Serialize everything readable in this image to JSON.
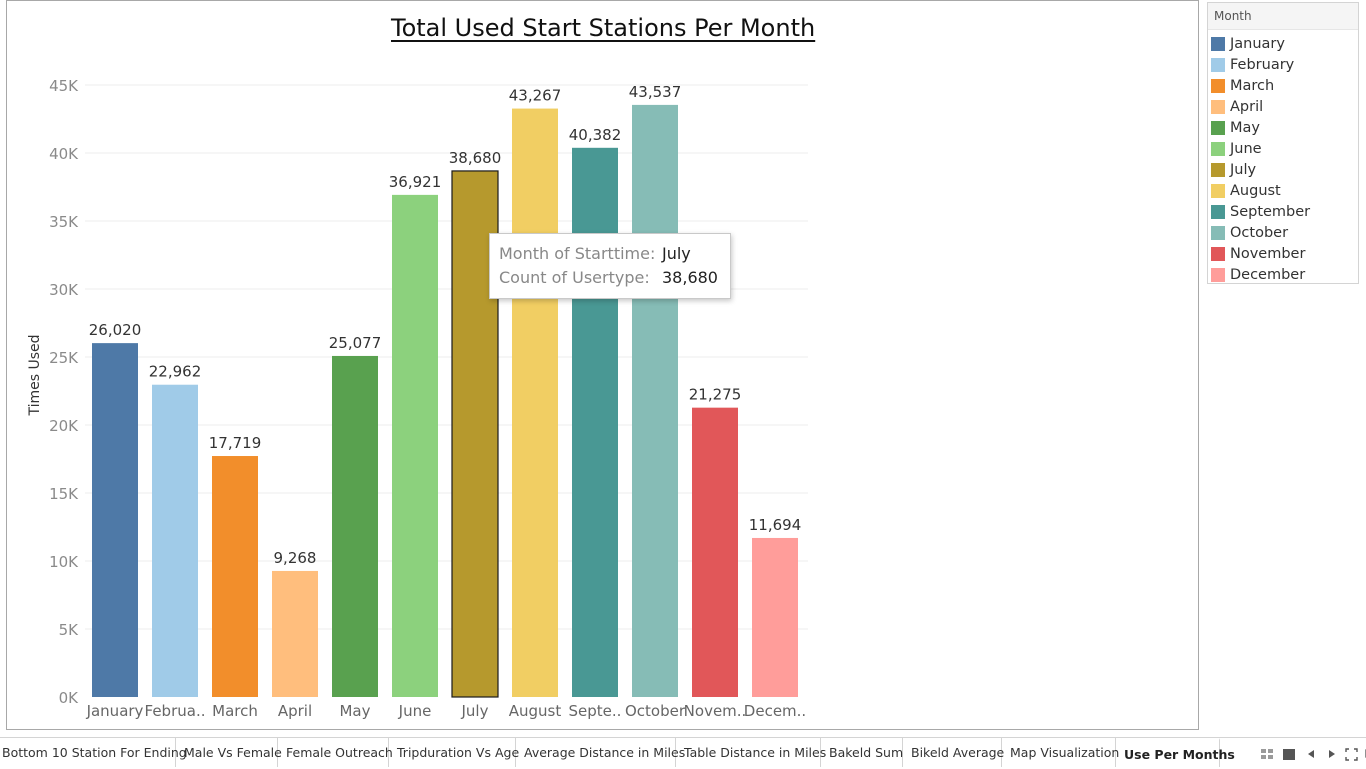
{
  "chart_data": {
    "type": "bar",
    "title": "Total Used Start Stations Per Month",
    "ylabel": "Times Used",
    "xlabel": "",
    "ylim": [
      0,
      46000
    ],
    "yticks": [
      0,
      5000,
      10000,
      15000,
      20000,
      25000,
      30000,
      35000,
      40000,
      45000
    ],
    "ytick_labels": [
      "0K",
      "5K",
      "10K",
      "15K",
      "20K",
      "25K",
      "30K",
      "35K",
      "40K",
      "45K"
    ],
    "grid": "horizontal",
    "categories": [
      "January",
      "February",
      "March",
      "April",
      "May",
      "June",
      "July",
      "August",
      "September",
      "October",
      "November",
      "December"
    ],
    "category_labels": [
      "January",
      "Februa..",
      "March",
      "April",
      "May",
      "June",
      "July",
      "August",
      "Septe..",
      "October",
      "Novem..",
      "Decem.."
    ],
    "values": [
      26020,
      22962,
      17719,
      9268,
      25077,
      36921,
      38680,
      43267,
      40382,
      43537,
      21275,
      11694
    ],
    "value_labels": [
      "26,020",
      "22,962",
      "17,719",
      "9,268",
      "25,077",
      "36,921",
      "38,680",
      "43,267",
      "40,382",
      "43,537",
      "21,275",
      "11,694"
    ],
    "colors": [
      "#4e79a7",
      "#a0cbe8",
      "#f28e2b",
      "#ffbe7d",
      "#59a14f",
      "#8cd17d",
      "#b6992d",
      "#f1ce63",
      "#499894",
      "#86bcb6",
      "#e15759",
      "#ff9d9a"
    ],
    "highlighted": "July",
    "legend_position": "right"
  },
  "legend": {
    "title": "Month",
    "items": [
      "January",
      "February",
      "March",
      "April",
      "May",
      "June",
      "July",
      "August",
      "September",
      "October",
      "November",
      "December"
    ]
  },
  "tooltip": {
    "label1": "Month of Starttime:",
    "value1": "July",
    "label2": "Count of Usertype:",
    "value2": "38,680"
  },
  "tabs": [
    "Bottom 10 Station For Ending",
    "Male Vs Female",
    "Female Outreach",
    "Tripduration Vs Age",
    "Average Distance in Miles",
    "Table Distance in Miles",
    "Bakeld Sum",
    "Bikeld Average",
    "Map Visualization",
    "Use Per Months"
  ],
  "active_tab": "Use Per Months",
  "nav_icons": [
    "grid-view-icon",
    "filmstrip-icon",
    "previous-tab-icon",
    "next-tab-icon",
    "fullscreen-icon",
    "presentation-icon"
  ]
}
